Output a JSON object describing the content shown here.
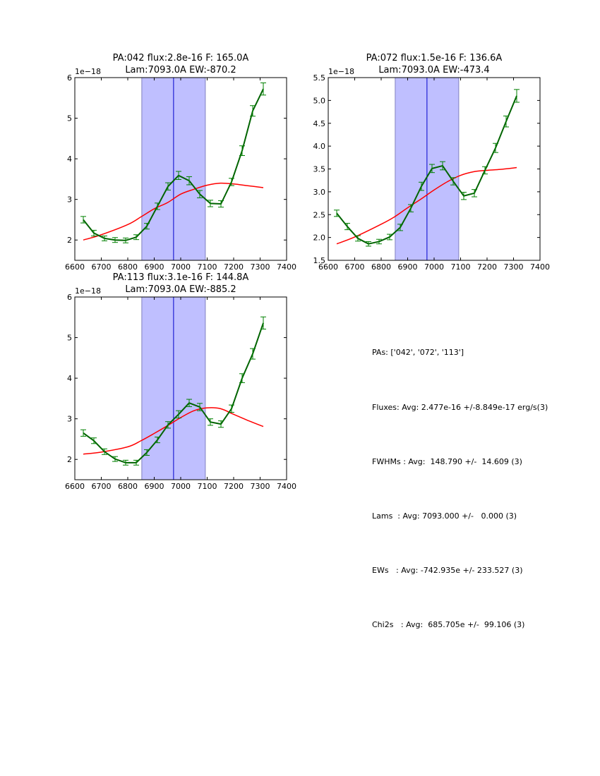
{
  "chart_data": [
    {
      "type": "line",
      "title_line1": "PA:042 flux:2.8e-16 F: 165.0A",
      "title_line2": "Lam:7093.0A EW:-870.2",
      "y_offset_label": "1e−18",
      "xlim": [
        6600,
        7400
      ],
      "ylim": [
        1.5,
        6
      ],
      "xticks": [
        "6600",
        "6700",
        "6800",
        "6900",
        "7000",
        "7100",
        "7200",
        "7300",
        "7400"
      ],
      "xtick_values": [
        6600,
        6700,
        6800,
        6900,
        7000,
        7100,
        7200,
        7300,
        7400
      ],
      "yticks": [
        "2",
        "3",
        "4",
        "5",
        "6"
      ],
      "ytick_values": [
        2,
        3,
        4,
        5,
        6
      ],
      "shaded_region": [
        6853,
        7093
      ],
      "center_line": 6973,
      "series": [
        {
          "name": "data",
          "color": "#006400",
          "x": [
            6632,
            6672,
            6712,
            6752,
            6792,
            6832,
            6872,
            6912,
            6952,
            6992,
            7032,
            7072,
            7112,
            7152,
            7192,
            7232,
            7272,
            7312
          ],
          "y": [
            2.5,
            2.17,
            2.04,
            2.0,
            1.99,
            2.07,
            2.34,
            2.83,
            3.32,
            3.59,
            3.46,
            3.13,
            2.9,
            2.89,
            3.43,
            4.2,
            5.18,
            5.72
          ],
          "yerr": [
            0.08,
            0.07,
            0.06,
            0.06,
            0.06,
            0.06,
            0.07,
            0.08,
            0.09,
            0.1,
            0.1,
            0.09,
            0.08,
            0.08,
            0.09,
            0.12,
            0.13,
            0.15
          ]
        },
        {
          "name": "fit",
          "color": "#ff0000",
          "x": [
            6632,
            6700,
            6800,
            6850,
            6900,
            6950,
            7000,
            7050,
            7100,
            7150,
            7200,
            7250,
            7312
          ],
          "y": [
            2.0,
            2.13,
            2.38,
            2.57,
            2.77,
            2.92,
            3.13,
            3.25,
            3.35,
            3.4,
            3.38,
            3.34,
            3.29
          ]
        }
      ]
    },
    {
      "type": "line",
      "title_line1": "PA:072 flux:1.5e-16 F: 136.6A",
      "title_line2": "Lam:7093.0A EW:-473.4",
      "y_offset_label": "1e−18",
      "xlim": [
        6600,
        7400
      ],
      "ylim": [
        1.5,
        5.5
      ],
      "xticks": [
        "6600",
        "6700",
        "6800",
        "6900",
        "7000",
        "7100",
        "7200",
        "7300",
        "7400"
      ],
      "xtick_values": [
        6600,
        6700,
        6800,
        6900,
        7000,
        7100,
        7200,
        7300,
        7400
      ],
      "yticks": [
        "1.5",
        "2.0",
        "2.5",
        "3.0",
        "3.5",
        "4.0",
        "4.5",
        "5.0",
        "5.5"
      ],
      "ytick_values": [
        1.5,
        2.0,
        2.5,
        3.0,
        3.5,
        4.0,
        4.5,
        5.0,
        5.5
      ],
      "shaded_region": [
        6853,
        7093
      ],
      "center_line": 6973,
      "series": [
        {
          "name": "data",
          "color": "#006400",
          "x": [
            6632,
            6672,
            6712,
            6752,
            6792,
            6832,
            6872,
            6912,
            6952,
            6992,
            7032,
            7072,
            7112,
            7152,
            7192,
            7232,
            7272,
            7312
          ],
          "y": [
            2.53,
            2.24,
            1.98,
            1.86,
            1.91,
            2.01,
            2.22,
            2.64,
            3.12,
            3.51,
            3.57,
            3.23,
            2.91,
            2.97,
            3.47,
            3.96,
            4.54,
            5.1
          ],
          "yerr": [
            0.07,
            0.07,
            0.06,
            0.05,
            0.05,
            0.06,
            0.07,
            0.08,
            0.09,
            0.09,
            0.09,
            0.08,
            0.08,
            0.08,
            0.08,
            0.1,
            0.12,
            0.14
          ]
        },
        {
          "name": "fit",
          "color": "#ff0000",
          "x": [
            6632,
            6700,
            6800,
            6850,
            6900,
            6950,
            7000,
            7050,
            7100,
            7150,
            7200,
            7250,
            7312
          ],
          "y": [
            1.86,
            2.01,
            2.29,
            2.45,
            2.65,
            2.84,
            3.04,
            3.22,
            3.36,
            3.44,
            3.47,
            3.49,
            3.53
          ]
        }
      ]
    },
    {
      "type": "line",
      "title_line1": "PA:113 flux:3.1e-16 F: 144.8A",
      "title_line2": "Lam:7093.0A EW:-885.2",
      "y_offset_label": "1e−18",
      "xlim": [
        6600,
        7400
      ],
      "ylim": [
        1.5,
        6
      ],
      "xticks": [
        "6600",
        "6700",
        "6800",
        "6900",
        "7000",
        "7100",
        "7200",
        "7300",
        "7400"
      ],
      "xtick_values": [
        6600,
        6700,
        6800,
        6900,
        7000,
        7100,
        7200,
        7300,
        7400
      ],
      "yticks": [
        "2",
        "3",
        "4",
        "5",
        "6"
      ],
      "ytick_values": [
        2,
        3,
        4,
        5,
        6
      ],
      "shaded_region": [
        6853,
        7093
      ],
      "center_line": 6973,
      "series": [
        {
          "name": "data",
          "color": "#006400",
          "x": [
            6632,
            6672,
            6712,
            6752,
            6792,
            6832,
            6872,
            6912,
            6952,
            6992,
            7032,
            7072,
            7112,
            7152,
            7192,
            7232,
            7272,
            7312
          ],
          "y": [
            2.65,
            2.46,
            2.19,
            2.01,
            1.92,
            1.92,
            2.17,
            2.48,
            2.85,
            3.11,
            3.39,
            3.29,
            2.92,
            2.87,
            3.25,
            4.0,
            4.6,
            5.36
          ],
          "yerr": [
            0.08,
            0.07,
            0.07,
            0.06,
            0.06,
            0.06,
            0.07,
            0.07,
            0.08,
            0.09,
            0.09,
            0.09,
            0.08,
            0.08,
            0.09,
            0.11,
            0.13,
            0.15
          ]
        },
        {
          "name": "fit",
          "color": "#ff0000",
          "x": [
            6632,
            6700,
            6800,
            6850,
            6900,
            6950,
            7000,
            7050,
            7100,
            7150,
            7200,
            7250,
            7312
          ],
          "y": [
            2.13,
            2.18,
            2.31,
            2.46,
            2.64,
            2.83,
            3.03,
            3.2,
            3.27,
            3.25,
            3.11,
            2.97,
            2.81
          ]
        }
      ]
    }
  ],
  "colors": {
    "data_line": "#006400",
    "errorbar": "#008000",
    "fit_line": "#ff0000",
    "shade_fill": "#bfbfff",
    "shade_edge": "#8080c0",
    "center_line": "#0000cc"
  },
  "summary": {
    "pas": "PAs: ['042', '072', '113']",
    "fluxes": "Fluxes: Avg: 2.477e-16 +/-8.849e-17 erg/s(3)",
    "fwhms": "FWHMs : Avg:  148.790 +/-  14.609 (3)",
    "lams": "Lams  : Avg: 7093.000 +/-   0.000 (3)",
    "ews": "EWs   : Avg: -742.935e +/- 233.527 (3)",
    "chi2s": "Chi2s   : Avg:  685.705e +/-  99.106 (3)"
  }
}
